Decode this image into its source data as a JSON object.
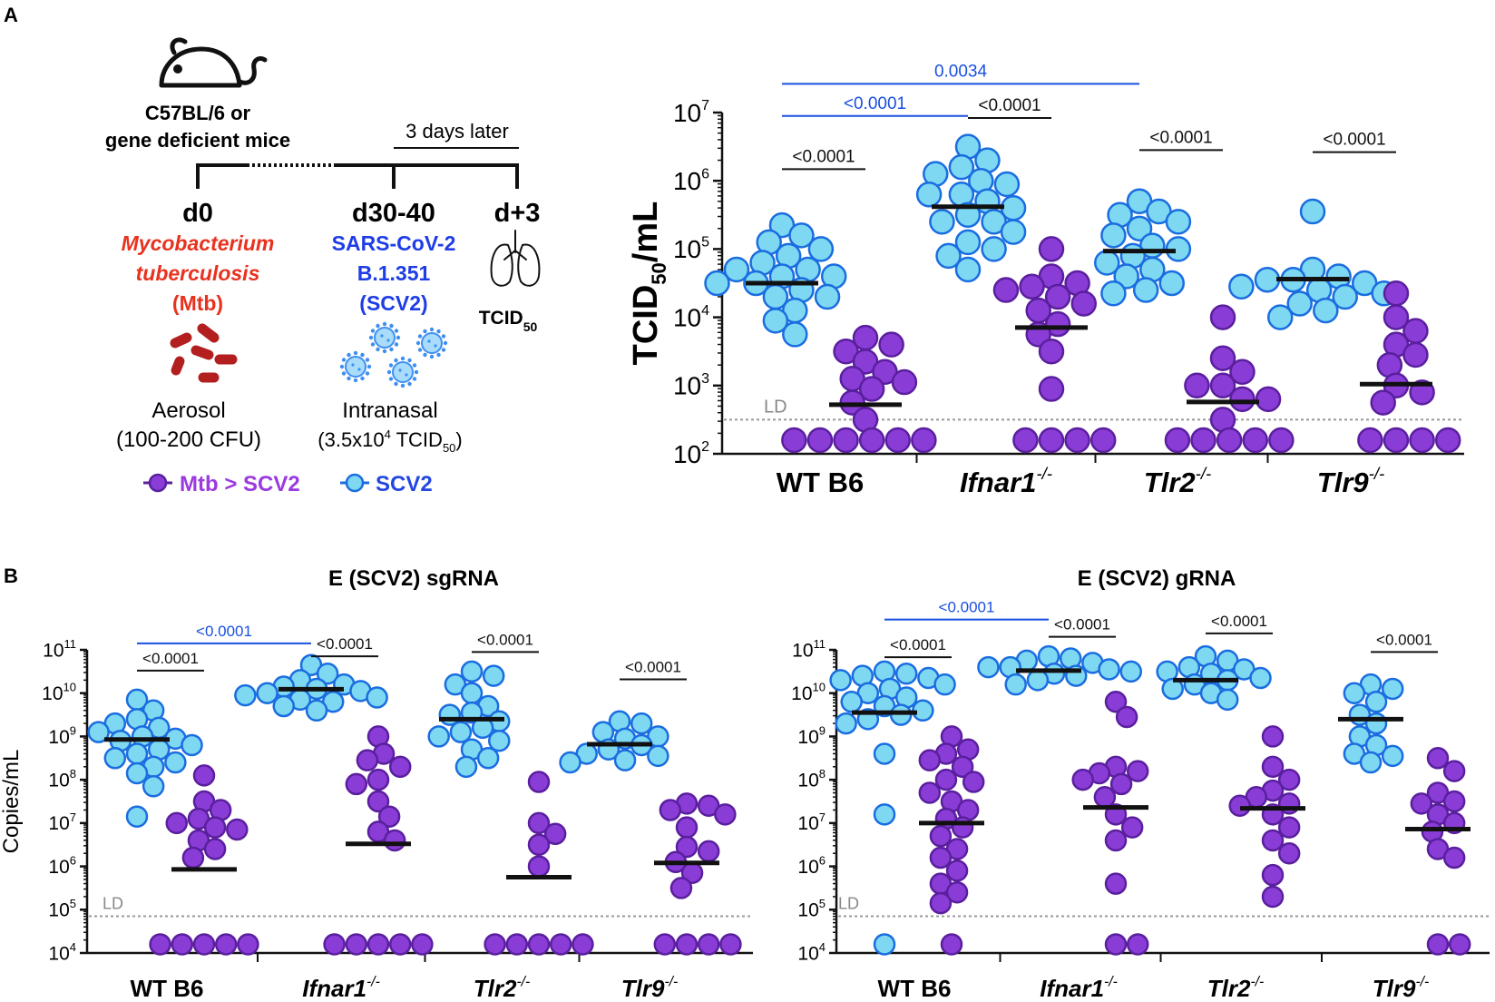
{
  "panel_labels": [
    "A",
    "B"
  ],
  "colors": {
    "scv2_fill": "#7fd8f2",
    "scv2_stroke": "#1a6de0",
    "mtb_fill": "#8a3dd6",
    "mtb_stroke": "#5a1f9e",
    "mtb_text": "#e8321f",
    "scv2_text": "#1f3de6",
    "legend_mtb_text": "#9b3ae0",
    "legend_scv2_text": "#2447e0",
    "blue_bracket": "#1a4fe0",
    "median": "#111111",
    "ld_line": "#999999"
  },
  "schematic": {
    "mouse_label_line1": "C57BL/6 or",
    "mouse_label_line2": "gene deficient mice",
    "days_later": "3 days later",
    "d0": "d0",
    "d30": "d30-40",
    "d3": "d+3",
    "mtb_line1": "Mycobacterium",
    "mtb_line2": "tuberculosis",
    "mtb_line3": "(Mtb)",
    "scv2_line1": "SARS-CoV-2",
    "scv2_line2": "B.1.351",
    "scv2_line3": "(SCV2)",
    "tcid_label": "TCID",
    "tcid_sub": "50",
    "aerosol": "Aerosol",
    "aerosol_dose": "(100-200 CFU)",
    "intranasal": "Intranasal",
    "intranasal_dose_pre": "(3.5x10",
    "intranasal_dose_exp": "4",
    "intranasal_dose_mid": " TCID",
    "intranasal_dose_sub": "50",
    "intranasal_dose_post": ")",
    "legend_mtb": "Mtb > SCV2",
    "legend_scv2": "SCV2",
    "legend_mtb_icon": "circle-marker-purple",
    "legend_scv2_icon": "circle-marker-blue",
    "mouse_icon": "mouse-icon",
    "bacteria_icon": "bacteria-icon",
    "virus_icon": "virus-icon",
    "lung_icon": "lung-icon"
  },
  "chart_data": [
    {
      "id": "tcid",
      "type": "scatter",
      "title": "",
      "ylabel": "TCID50/mL",
      "ylabel_main": "TCID",
      "ylabel_sub": "50",
      "ylabel_post": "/mL",
      "yscale": "log10",
      "ylim_exp": [
        2,
        7
      ],
      "ld_label": "LD",
      "ld_value_log": 2.5,
      "categories": [
        "WT B6",
        "Ifnar1",
        "Tlr2",
        "Tlr9"
      ],
      "category_sup": [
        "",
        "-/-",
        "-/-",
        "-/-"
      ],
      "category_italic": [
        false,
        true,
        true,
        true
      ],
      "series": [
        {
          "name": "SCV2",
          "group_values_log": [
            [
              5.35,
              5.2,
              5.0,
              5.1,
              4.9,
              4.7,
              4.6,
              4.5,
              4.4,
              4.6,
              4.3,
              4.1,
              3.95,
              4.8,
              4.5,
              4.7,
              4.3,
              3.75
            ],
            [
              6.5,
              6.3,
              6.2,
              6.1,
              5.95,
              5.8,
              5.7,
              5.6,
              5.5,
              5.4,
              5.25,
              5.1,
              5.0,
              4.9,
              4.7,
              5.8,
              6.0,
              5.4
            ],
            [
              5.7,
              5.55,
              5.5,
              5.4,
              5.3,
              5.2,
              5.05,
              4.9,
              4.8,
              4.7,
              4.5,
              4.4,
              4.35,
              5.0,
              4.6
            ],
            [
              5.55,
              4.7,
              4.6,
              4.55,
              4.5,
              4.45,
              4.4,
              4.3,
              4.2,
              4.1,
              4.0,
              4.55,
              4.35
            ]
          ],
          "medians_log": [
            4.5,
            5.62,
            4.97,
            4.56
          ]
        },
        {
          "name": "Mtb > SCV2",
          "group_values_log": [
            [
              3.7,
              3.6,
              3.5,
              3.35,
              3.2,
              3.05,
              2.95,
              2.75,
              2.5,
              2.2,
              2.2,
              2.2,
              2.2,
              2.2,
              2.2,
              3.1
            ],
            [
              5.0,
              4.6,
              4.5,
              4.4,
              4.3,
              4.2,
              4.1,
              3.9,
              3.75,
              3.5,
              2.95,
              2.2,
              2.2,
              2.2,
              2.2,
              4.45
            ],
            [
              4.0,
              3.4,
              3.2,
              3.0,
              2.8,
              2.8,
              2.5,
              2.2,
              2.2,
              2.2,
              2.2,
              2.2,
              3.0
            ],
            [
              4.35,
              4.0,
              3.8,
              3.6,
              3.45,
              3.3,
              3.0,
              2.9,
              2.75,
              2.2,
              2.2,
              2.2,
              2.2
            ]
          ],
          "medians_log": [
            2.72,
            3.85,
            2.76,
            3.02
          ]
        }
      ],
      "comparisons": [
        {
          "label": "<0.0001",
          "color": "black",
          "between": "WT B6 SCV2 vs WT B6 Mtb > SCV2",
          "y_log": 6.17
        },
        {
          "label": "<0.0001",
          "color": "black",
          "between": "Ifnar1 SCV2 vs Ifnar1 Mtb > SCV2",
          "y_log": 6.92
        },
        {
          "label": "<0.0001",
          "color": "black",
          "between": "Tlr2 SCV2 vs Tlr2 Mtb > SCV2",
          "y_log": 6.45
        },
        {
          "label": "<0.0001",
          "color": "black",
          "between": "Tlr9 SCV2 vs Tlr9 Mtb > SCV2",
          "y_log": 6.42
        },
        {
          "label": "<0.0001",
          "color": "blue",
          "between": "WT B6 SCV2 vs Ifnar1 SCV2",
          "y_log": 6.95
        },
        {
          "label": "0.0034",
          "color": "blue",
          "between": "WT B6 SCV2 vs Tlr2 SCV2",
          "y_log": 7.42
        }
      ]
    },
    {
      "id": "sgrna",
      "type": "scatter",
      "title": "E (SCV2) sgRNA",
      "ylabel": "Copies/mL",
      "yscale": "log10",
      "ylim_exp": [
        4,
        11
      ],
      "ld_label": "LD",
      "ld_value_log": 4.85,
      "categories": [
        "WT B6",
        "Ifnar1",
        "Tlr2",
        "Tlr9"
      ],
      "category_sup": [
        "",
        "-/-",
        "-/-",
        "-/-"
      ],
      "category_italic": [
        false,
        true,
        true,
        true
      ],
      "series": [
        {
          "name": "SCV2",
          "group_values_log": [
            [
              9.85,
              9.6,
              9.4,
              9.2,
              9.1,
              9.0,
              8.9,
              8.8,
              8.7,
              8.6,
              8.5,
              8.4,
              8.3,
              8.15,
              7.85,
              7.15,
              9.3,
              8.95
            ],
            [
              10.65,
              10.45,
              10.3,
              10.2,
              10.1,
              10.05,
              10.0,
              9.9,
              9.85,
              9.8,
              9.7,
              9.6,
              10.15,
              9.95
            ],
            [
              10.5,
              10.4,
              10.2,
              10.0,
              9.7,
              9.5,
              9.35,
              9.2,
              9.0,
              8.9,
              8.7,
              8.5,
              8.3,
              9.55,
              9.1
            ],
            [
              9.35,
              9.3,
              9.1,
              8.95,
              8.8,
              8.7,
              8.6,
              8.55,
              8.45,
              8.4,
              9.0
            ]
          ],
          "medians_log": [
            8.93,
            10.09,
            9.4,
            8.82
          ]
        },
        {
          "name": "Mtb > SCV2",
          "group_values_log": [
            [
              8.1,
              7.5,
              7.3,
              7.1,
              6.85,
              6.6,
              6.4,
              6.2,
              4.2,
              4.2,
              4.2,
              4.2,
              4.2,
              6.9,
              7.0
            ],
            [
              9.0,
              8.6,
              8.3,
              8.0,
              7.5,
              7.15,
              6.6,
              4.2,
              4.2,
              4.2,
              4.2,
              4.2,
              8.45,
              7.9,
              6.8
            ],
            [
              7.95,
              7.0,
              6.75,
              6.5,
              6.0,
              4.2,
              4.2,
              4.2,
              4.2,
              4.2
            ],
            [
              7.45,
              7.4,
              7.2,
              6.9,
              6.35,
              6.1,
              5.85,
              5.5,
              4.2,
              4.2,
              4.2,
              4.2,
              7.3,
              6.45
            ]
          ],
          "medians_log": [
            5.93,
            6.52,
            5.75,
            6.08
          ]
        }
      ],
      "comparisons": [
        {
          "label": "<0.0001",
          "color": "black",
          "between": "WT B6 SCV2 vs WT B6 Mtb > SCV2",
          "y_log": 10.52
        },
        {
          "label": "<0.0001",
          "color": "black",
          "between": "Ifnar1 SCV2 vs Ifnar1 Mtb > SCV2",
          "y_log": 10.85
        },
        {
          "label": "<0.0001",
          "color": "black",
          "between": "Tlr2 SCV2 vs Tlr2 Mtb > SCV2",
          "y_log": 10.95
        },
        {
          "label": "<0.0001",
          "color": "black",
          "between": "Tlr9 SCV2 vs Tlr9 Mtb > SCV2",
          "y_log": 10.32
        },
        {
          "label": "<0.0001",
          "color": "blue",
          "between": "WT B6 SCV2 vs Ifnar1 SCV2",
          "y_log": 11.15
        }
      ]
    },
    {
      "id": "grna",
      "type": "scatter",
      "title": "E (SCV2) gRNA",
      "ylabel": "",
      "yscale": "log10",
      "ylim_exp": [
        4,
        11
      ],
      "ld_label": "LD",
      "ld_value_log": 4.85,
      "categories": [
        "WT B6",
        "Ifnar1",
        "Tlr2",
        "Tlr9"
      ],
      "category_sup": [
        "",
        "-/-",
        "-/-",
        "-/-"
      ],
      "category_italic": [
        false,
        true,
        true,
        true
      ],
      "series": [
        {
          "name": "SCV2",
          "group_values_log": [
            [
              10.5,
              10.45,
              10.4,
              10.3,
              10.2,
              10.1,
              10.0,
              9.9,
              9.8,
              9.7,
              9.6,
              9.5,
              9.4,
              9.3,
              8.6,
              7.2,
              4.2,
              10.35
            ],
            [
              10.85,
              10.8,
              10.75,
              10.7,
              10.6,
              10.5,
              10.45,
              10.4,
              10.3,
              10.2,
              10.6,
              10.55
            ],
            [
              10.85,
              10.75,
              10.6,
              10.5,
              10.45,
              10.35,
              10.3,
              10.2,
              10.1,
              10.0,
              9.85,
              10.55
            ],
            [
              10.2,
              10.1,
              10.0,
              9.8,
              9.5,
              9.3,
              9.0,
              8.8,
              8.55,
              8.4,
              8.6
            ]
          ],
          "medians_log": [
            9.55,
            10.52,
            10.3,
            9.4
          ]
        },
        {
          "name": "Mtb > SCV2",
          "group_values_log": [
            [
              9.0,
              8.7,
              8.45,
              8.3,
              8.0,
              7.7,
              7.5,
              7.3,
              7.1,
              6.9,
              6.7,
              6.4,
              6.2,
              5.9,
              5.6,
              5.4,
              5.15,
              4.2,
              8.6,
              7.95
            ],
            [
              9.8,
              9.45,
              8.3,
              8.2,
              8.15,
              7.9,
              7.6,
              7.2,
              6.9,
              6.6,
              5.6,
              4.2,
              4.2,
              8.0
            ],
            [
              9.0,
              8.3,
              8.0,
              7.6,
              7.4,
              7.2,
              6.9,
              6.6,
              6.3,
              5.8,
              5.3,
              7.75,
              7.45
            ],
            [
              8.5,
              8.2,
              7.7,
              7.5,
              7.2,
              7.0,
              6.8,
              6.4,
              6.2,
              4.2,
              4.2,
              7.45
            ]
          ],
          "medians_log": [
            7.0,
            7.36,
            7.34,
            6.86
          ]
        }
      ],
      "comparisons": [
        {
          "label": "<0.0001",
          "color": "black",
          "between": "WT B6 SCV2 vs WT B6 Mtb > SCV2",
          "y_log": 10.83
        },
        {
          "label": "<0.0001",
          "color": "black",
          "between": "Ifnar1 SCV2 vs Ifnar1 Mtb > SCV2",
          "y_log": 11.3
        },
        {
          "label": "<0.0001",
          "color": "black",
          "between": "Tlr2 SCV2 vs Tlr2 Mtb > SCV2",
          "y_log": 11.38
        },
        {
          "label": "<0.0001",
          "color": "black",
          "between": "Tlr9 SCV2 vs Tlr9 Mtb > SCV2",
          "y_log": 10.95
        },
        {
          "label": "<0.0001",
          "color": "blue",
          "between": "WT B6 SCV2 vs Ifnar1 SCV2",
          "y_log": 11.7
        }
      ]
    }
  ]
}
